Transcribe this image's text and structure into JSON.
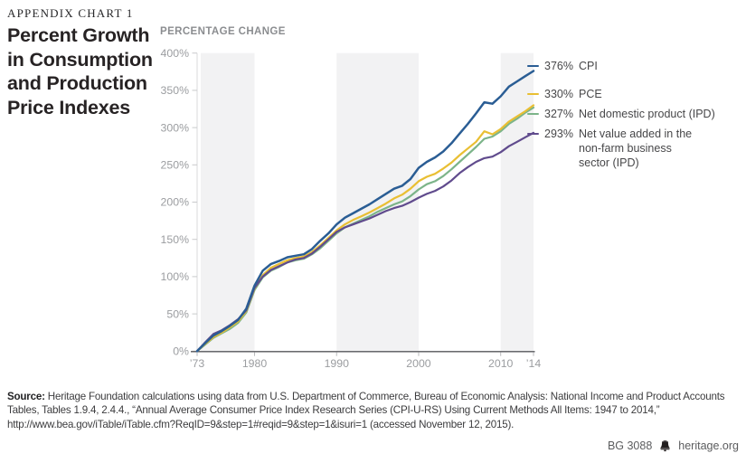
{
  "header": {
    "kicker": "APPENDIX CHART 1",
    "title": "Percent Growth in Consumption and Production Price Indexes"
  },
  "chart_data": {
    "type": "line",
    "ylabel": "PERCENTAGE CHANGE",
    "ylim": [
      0,
      400
    ],
    "ytick_labels": [
      "0%",
      "50%",
      "100%",
      "150%",
      "200%",
      "250%",
      "300%",
      "350%",
      "400%"
    ],
    "xticks": [
      {
        "year": 1973,
        "label": "’73"
      },
      {
        "year": 1980,
        "label": "1980"
      },
      {
        "year": 1990,
        "label": "1990"
      },
      {
        "year": 2000,
        "label": "2000"
      },
      {
        "year": 2010,
        "label": "2010"
      },
      {
        "year": 2014,
        "label": "’14"
      }
    ],
    "shaded_bands_years": [
      [
        1973,
        1980
      ],
      [
        1990,
        2000
      ],
      [
        2010,
        2014
      ]
    ],
    "grid": "none",
    "legend_position": "right",
    "x_years": [
      1973,
      1974,
      1975,
      1976,
      1977,
      1978,
      1979,
      1980,
      1981,
      1982,
      1983,
      1984,
      1985,
      1986,
      1987,
      1988,
      1989,
      1990,
      1991,
      1992,
      1993,
      1994,
      1995,
      1996,
      1997,
      1998,
      1999,
      2000,
      2001,
      2002,
      2003,
      2004,
      2005,
      2006,
      2007,
      2008,
      2009,
      2010,
      2011,
      2012,
      2013,
      2014
    ],
    "series": [
      {
        "name": "CPI",
        "end_value_label": "376%",
        "color": "#2a5d94",
        "values": [
          0,
          11,
          21,
          27,
          34,
          42,
          57,
          88,
          108,
          117,
          121,
          126,
          128,
          130,
          137,
          148,
          158,
          170,
          179,
          185,
          191,
          197,
          204,
          211,
          218,
          222,
          231,
          246,
          254,
          260,
          268,
          279,
          292,
          305,
          319,
          334,
          332,
          342,
          355,
          362,
          369,
          376
        ]
      },
      {
        "name": "PCE",
        "end_value_label": "330%",
        "color": "#e9bf33",
        "values": [
          0,
          10,
          19,
          25,
          32,
          40,
          54,
          84,
          102,
          112,
          117,
          122,
          125,
          127,
          133,
          142,
          152,
          162,
          170,
          176,
          181,
          186,
          192,
          198,
          205,
          210,
          218,
          228,
          234,
          238,
          245,
          253,
          263,
          272,
          281,
          295,
          291,
          298,
          308,
          315,
          322,
          330
        ]
      },
      {
        "name": "Net domestic product (IPD)",
        "end_value_label": "327%",
        "color": "#7cb489",
        "values": [
          0,
          9,
          18,
          24,
          30,
          38,
          52,
          82,
          99,
          108,
          113,
          119,
          122,
          124,
          130,
          138,
          148,
          158,
          166,
          171,
          176,
          181,
          187,
          192,
          197,
          201,
          208,
          217,
          224,
          228,
          235,
          244,
          254,
          264,
          274,
          285,
          288,
          295,
          305,
          312,
          320,
          327
        ]
      },
      {
        "name": "Net value added in the non-farm business sector (IPD)",
        "end_value_label": "293%",
        "color": "#604b8d",
        "values": [
          0,
          12,
          23,
          28,
          35,
          43,
          55,
          85,
          100,
          109,
          114,
          119,
          123,
          125,
          131,
          140,
          150,
          160,
          166,
          170,
          174,
          178,
          183,
          188,
          192,
          195,
          200,
          206,
          211,
          215,
          221,
          229,
          239,
          247,
          254,
          259,
          261,
          267,
          275,
          281,
          287,
          293
        ]
      }
    ]
  },
  "source": {
    "label": "Source:",
    "text": " Heritage Foundation calculations using data from U.S. Department of Commerce, Bureau of Economic Analysis: National Income and Product Accounts Tables, Tables 1.9.4, 2.4.4., “Annual Average Consumer Price Index Research Series  (CPI-U-RS) Using Current Methods All Items: 1947 to 2014,” http://www.bea.gov/iTable/iTable.cfm?ReqID=9&step=1#reqid=9&step=1&isuri=1 (accessed November 12, 2015)."
  },
  "footer": {
    "doc_id": "BG 3088",
    "site": "heritage.org",
    "bell_icon": "liberty-bell-icon"
  }
}
